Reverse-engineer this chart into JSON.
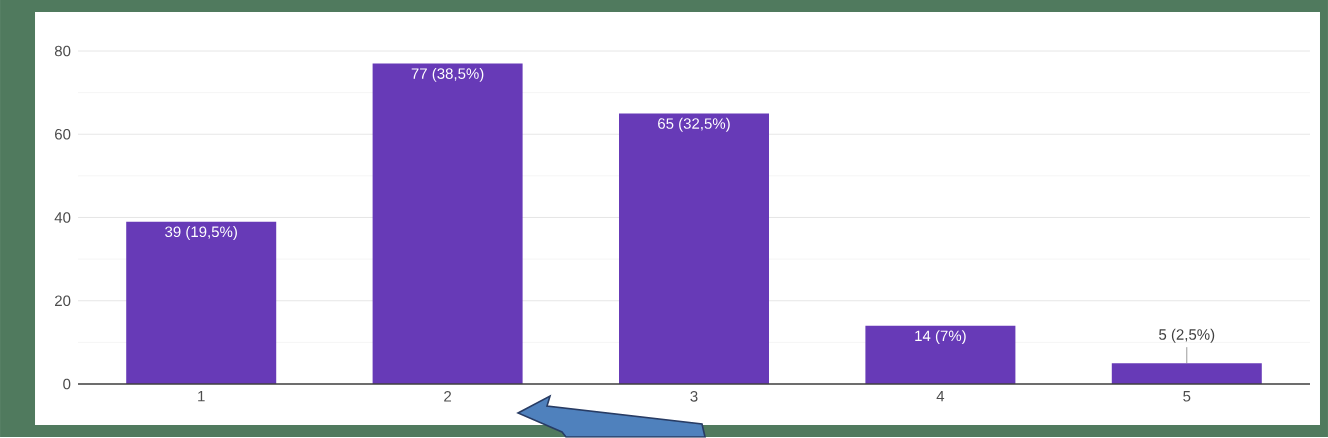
{
  "chart_data": {
    "type": "bar",
    "categories": [
      "1",
      "2",
      "3",
      "4",
      "5"
    ],
    "values": [
      39,
      77,
      65,
      14,
      5
    ],
    "value_labels": [
      "39 (19,5%)",
      "77 (38,5%)",
      "65 (32,5%)",
      "14 (7%)",
      "5 (2,5%)"
    ],
    "color": "#673ab7",
    "ylim": [
      0,
      80
    ],
    "yticks": [
      0,
      20,
      40,
      60,
      80
    ],
    "grid": "y"
  }
}
